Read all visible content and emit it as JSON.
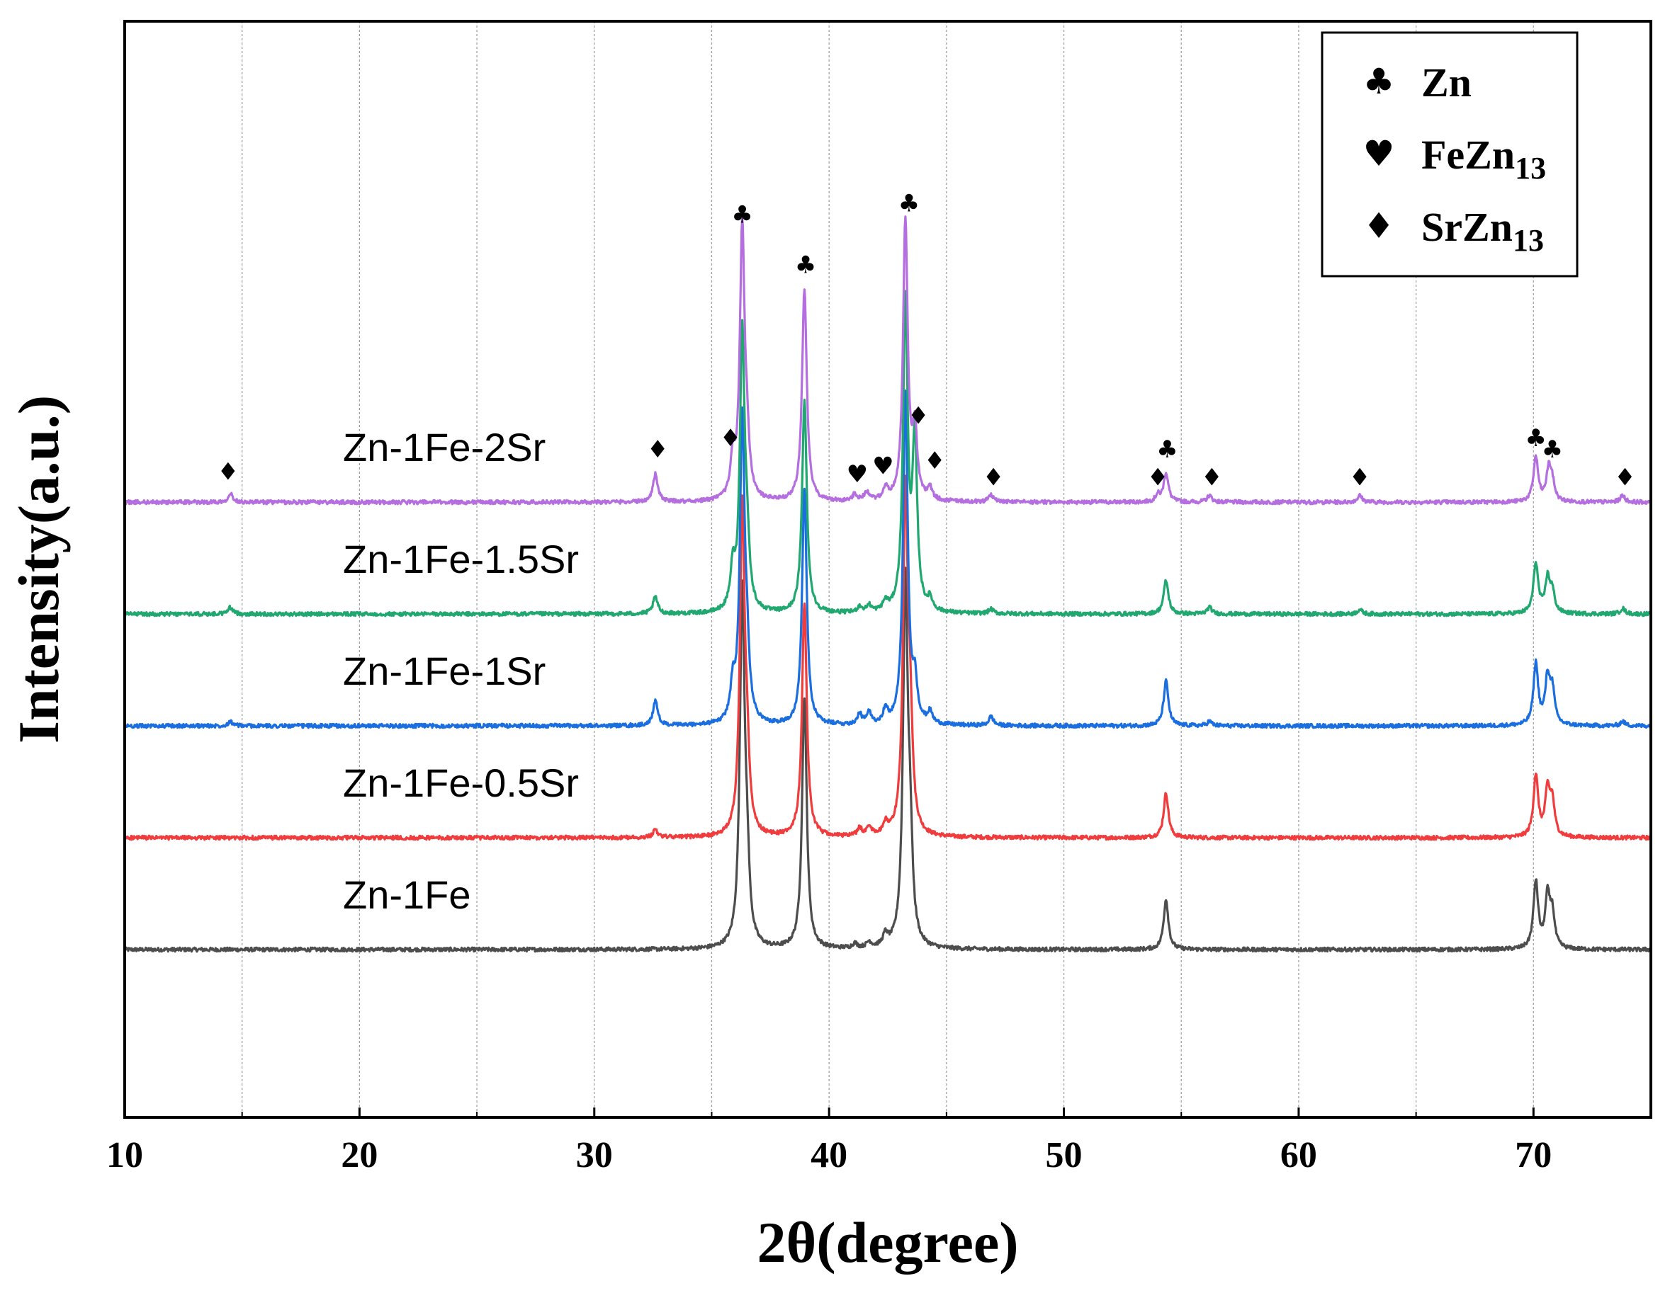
{
  "chart_data": {
    "type": "line",
    "xlabel": "2θ(degree)",
    "ylabel": "Intensity(a.u.)",
    "xlim": [
      10,
      75
    ],
    "xticks": [
      10,
      20,
      30,
      40,
      50,
      60,
      70
    ],
    "minor_grid_x": [
      15,
      25,
      35,
      45,
      55,
      65
    ],
    "grid_x": true,
    "peak_width": 0.12,
    "series": [
      {
        "name": "Zn-1Fe",
        "color": "#4d4d4d",
        "baseline": 1.5,
        "peaks": [
          [
            36.3,
            3.15
          ],
          [
            36.5,
            0.6
          ],
          [
            38.95,
            2.25
          ],
          [
            41.1,
            0.04
          ],
          [
            41.7,
            0.05
          ],
          [
            42.4,
            0.1
          ],
          [
            43.25,
            3.2
          ],
          [
            43.45,
            0.8
          ],
          [
            54.35,
            0.45
          ],
          [
            70.1,
            0.6
          ],
          [
            70.6,
            0.45
          ],
          [
            70.8,
            0.3
          ]
        ]
      },
      {
        "name": "Zn-1Fe-0.5Sr",
        "color": "#f03c3c",
        "baseline": 2.5,
        "peaks": [
          [
            32.6,
            0.07
          ],
          [
            36.3,
            2.9
          ],
          [
            36.5,
            0.6
          ],
          [
            38.95,
            2.1
          ],
          [
            41.3,
            0.07
          ],
          [
            41.7,
            0.08
          ],
          [
            42.4,
            0.1
          ],
          [
            43.25,
            3.0
          ],
          [
            43.45,
            0.9
          ],
          [
            54.35,
            0.4
          ],
          [
            70.1,
            0.55
          ],
          [
            70.6,
            0.4
          ],
          [
            70.8,
            0.3
          ]
        ]
      },
      {
        "name": "Zn-1Fe-1Sr",
        "color": "#1a6ee0",
        "baseline": 3.5,
        "peaks": [
          [
            14.5,
            0.04
          ],
          [
            32.6,
            0.22
          ],
          [
            35.9,
            0.3
          ],
          [
            36.3,
            2.7
          ],
          [
            36.5,
            0.5
          ],
          [
            38.95,
            2.1
          ],
          [
            41.3,
            0.09
          ],
          [
            41.7,
            0.1
          ],
          [
            42.4,
            0.12
          ],
          [
            43.25,
            2.95
          ],
          [
            43.65,
            0.35
          ],
          [
            44.3,
            0.1
          ],
          [
            46.9,
            0.08
          ],
          [
            54.35,
            0.4
          ],
          [
            56.2,
            0.04
          ],
          [
            70.1,
            0.55
          ],
          [
            70.6,
            0.4
          ],
          [
            70.8,
            0.3
          ],
          [
            73.8,
            0.04
          ]
        ]
      },
      {
        "name": "Zn-1Fe-1.5Sr",
        "color": "#20a870",
        "baseline": 4.5,
        "peaks": [
          [
            14.5,
            0.06
          ],
          [
            32.6,
            0.15
          ],
          [
            35.9,
            0.35
          ],
          [
            36.3,
            2.45
          ],
          [
            36.5,
            0.5
          ],
          [
            38.95,
            1.9
          ],
          [
            41.3,
            0.05
          ],
          [
            41.7,
            0.06
          ],
          [
            42.4,
            0.08
          ],
          [
            43.25,
            2.75
          ],
          [
            43.65,
            1.5
          ],
          [
            44.3,
            0.1
          ],
          [
            46.9,
            0.04
          ],
          [
            54.35,
            0.3
          ],
          [
            56.2,
            0.06
          ],
          [
            62.6,
            0.04
          ],
          [
            70.1,
            0.45
          ],
          [
            70.6,
            0.3
          ],
          [
            70.8,
            0.18
          ],
          [
            73.8,
            0.05
          ]
        ]
      },
      {
        "name": "Zn-1Fe-2Sr",
        "color": "#b56ee0",
        "baseline": 5.5,
        "peaks": [
          [
            14.5,
            0.08
          ],
          [
            32.6,
            0.25
          ],
          [
            35.9,
            0.35
          ],
          [
            36.3,
            2.4
          ],
          [
            36.5,
            0.4
          ],
          [
            38.95,
            1.9
          ],
          [
            41.1,
            0.06
          ],
          [
            41.6,
            0.08
          ],
          [
            42.4,
            0.1
          ],
          [
            43.25,
            2.5
          ],
          [
            43.65,
            0.6
          ],
          [
            44.3,
            0.1
          ],
          [
            46.9,
            0.06
          ],
          [
            54.0,
            0.06
          ],
          [
            54.35,
            0.26
          ],
          [
            56.2,
            0.06
          ],
          [
            62.6,
            0.06
          ],
          [
            70.1,
            0.4
          ],
          [
            70.65,
            0.28
          ],
          [
            70.8,
            0.15
          ],
          [
            73.8,
            0.06
          ]
        ]
      }
    ],
    "annotations": [
      {
        "symbol": "♦",
        "x": 14.4,
        "y": 5.7
      },
      {
        "symbol": "♦",
        "x": 32.7,
        "y": 5.9
      },
      {
        "symbol": "♦",
        "x": 35.8,
        "y": 6.0
      },
      {
        "symbol": "♣",
        "x": 36.3,
        "y": 8.0
      },
      {
        "symbol": "♣",
        "x": 39.0,
        "y": 7.55
      },
      {
        "symbol": "♥",
        "x": 41.2,
        "y": 5.68
      },
      {
        "symbol": "♥",
        "x": 42.3,
        "y": 5.75
      },
      {
        "symbol": "♣",
        "x": 43.4,
        "y": 8.1
      },
      {
        "symbol": "♦",
        "x": 43.8,
        "y": 6.2
      },
      {
        "symbol": "♦",
        "x": 44.5,
        "y": 5.8
      },
      {
        "symbol": "♦",
        "x": 47.0,
        "y": 5.65
      },
      {
        "symbol": "♦",
        "x": 54.0,
        "y": 5.65
      },
      {
        "symbol": "♣",
        "x": 54.4,
        "y": 5.9
      },
      {
        "symbol": "♦",
        "x": 56.3,
        "y": 5.65
      },
      {
        "symbol": "♦",
        "x": 62.6,
        "y": 5.65
      },
      {
        "symbol": "♣",
        "x": 70.1,
        "y": 6.0
      },
      {
        "symbol": "♣",
        "x": 70.8,
        "y": 5.9
      },
      {
        "symbol": "♦",
        "x": 73.9,
        "y": 5.65
      }
    ],
    "legend": {
      "position": "top-right",
      "entries": [
        {
          "symbol": "♣",
          "name": "Zn",
          "sub": ""
        },
        {
          "symbol": "♥",
          "name": "FeZn",
          "sub": "13"
        },
        {
          "symbol": "♦",
          "name": "SrZn",
          "sub": "13"
        }
      ]
    }
  }
}
